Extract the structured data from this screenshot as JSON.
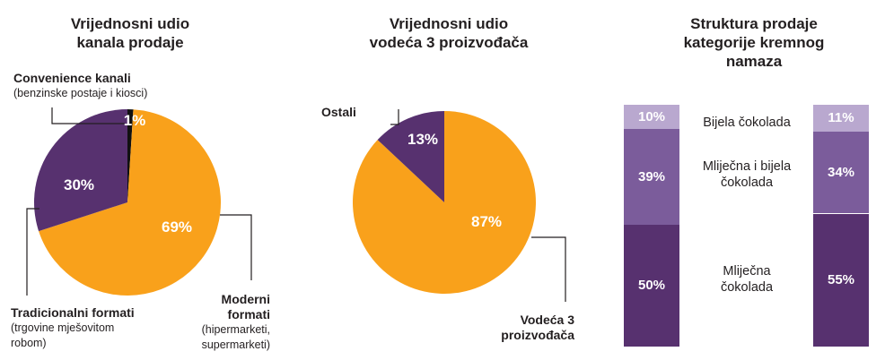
{
  "colors": {
    "orange": "#f9a11b",
    "purple_dark": "#57316f",
    "purple_mid": "#7b5c9b",
    "purple_light": "#b9a8cf",
    "black": "#111111"
  },
  "chart_data": [
    {
      "type": "pie",
      "title": "Vrijednosni udio kanala prodaje",
      "title_lines": [
        "Vrijednosni udio",
        "kanala prodaje"
      ],
      "slices": [
        {
          "name": "Convenience kanali",
          "detail": "(benzinske postaje i kiosci)",
          "value": 1,
          "label": "1%",
          "color": "#111111"
        },
        {
          "name": "Moderni formati",
          "name_lines": [
            "Moderni",
            "formati"
          ],
          "detail_lines": [
            "(hipermarketi,",
            "supermarketi)"
          ],
          "value": 69,
          "label": "69%",
          "color": "#f9a11b"
        },
        {
          "name": "Tradicionalni formati",
          "detail_lines": [
            "(trgovine mješovitom",
            "robom)"
          ],
          "value": 30,
          "label": "30%",
          "color": "#57316f"
        }
      ]
    },
    {
      "type": "pie",
      "title": "Vrijednosni udio vodeća 3 proizvođača",
      "title_lines": [
        "Vrijednosni udio",
        "vodeća 3 proizvođača"
      ],
      "slices": [
        {
          "name": "Vodeća 3 proizvođača",
          "name_lines": [
            "Vodeća 3",
            "proizvođača"
          ],
          "value": 87,
          "label": "87%",
          "color": "#f9a11b"
        },
        {
          "name": "Ostali",
          "value": 13,
          "label": "13%",
          "color": "#57316f"
        }
      ]
    },
    {
      "type": "bar",
      "stacked": true,
      "title": "Struktura prodaje kategorije kremnog namaza",
      "title_lines": [
        "Struktura prodaje",
        "kategorije kremnog",
        "namaza"
      ],
      "categories": [
        "Bijela čokolada",
        "Mliječna i bijela čokolada",
        "Mliječna čokolada"
      ],
      "category_lines": [
        [
          "Bijela čokolada"
        ],
        [
          "Mliječna i bijela",
          "čokolada"
        ],
        [
          "Mliječna",
          "čokolada"
        ]
      ],
      "series": [
        {
          "values": [
            10,
            39,
            50
          ],
          "labels": [
            "10%",
            "39%",
            "50%"
          ]
        },
        {
          "values": [
            11,
            34,
            55
          ],
          "labels": [
            "11%",
            "34%",
            "55%"
          ]
        }
      ],
      "segment_colors": [
        "#b9a8cf",
        "#7b5c9b",
        "#57316f"
      ]
    }
  ]
}
